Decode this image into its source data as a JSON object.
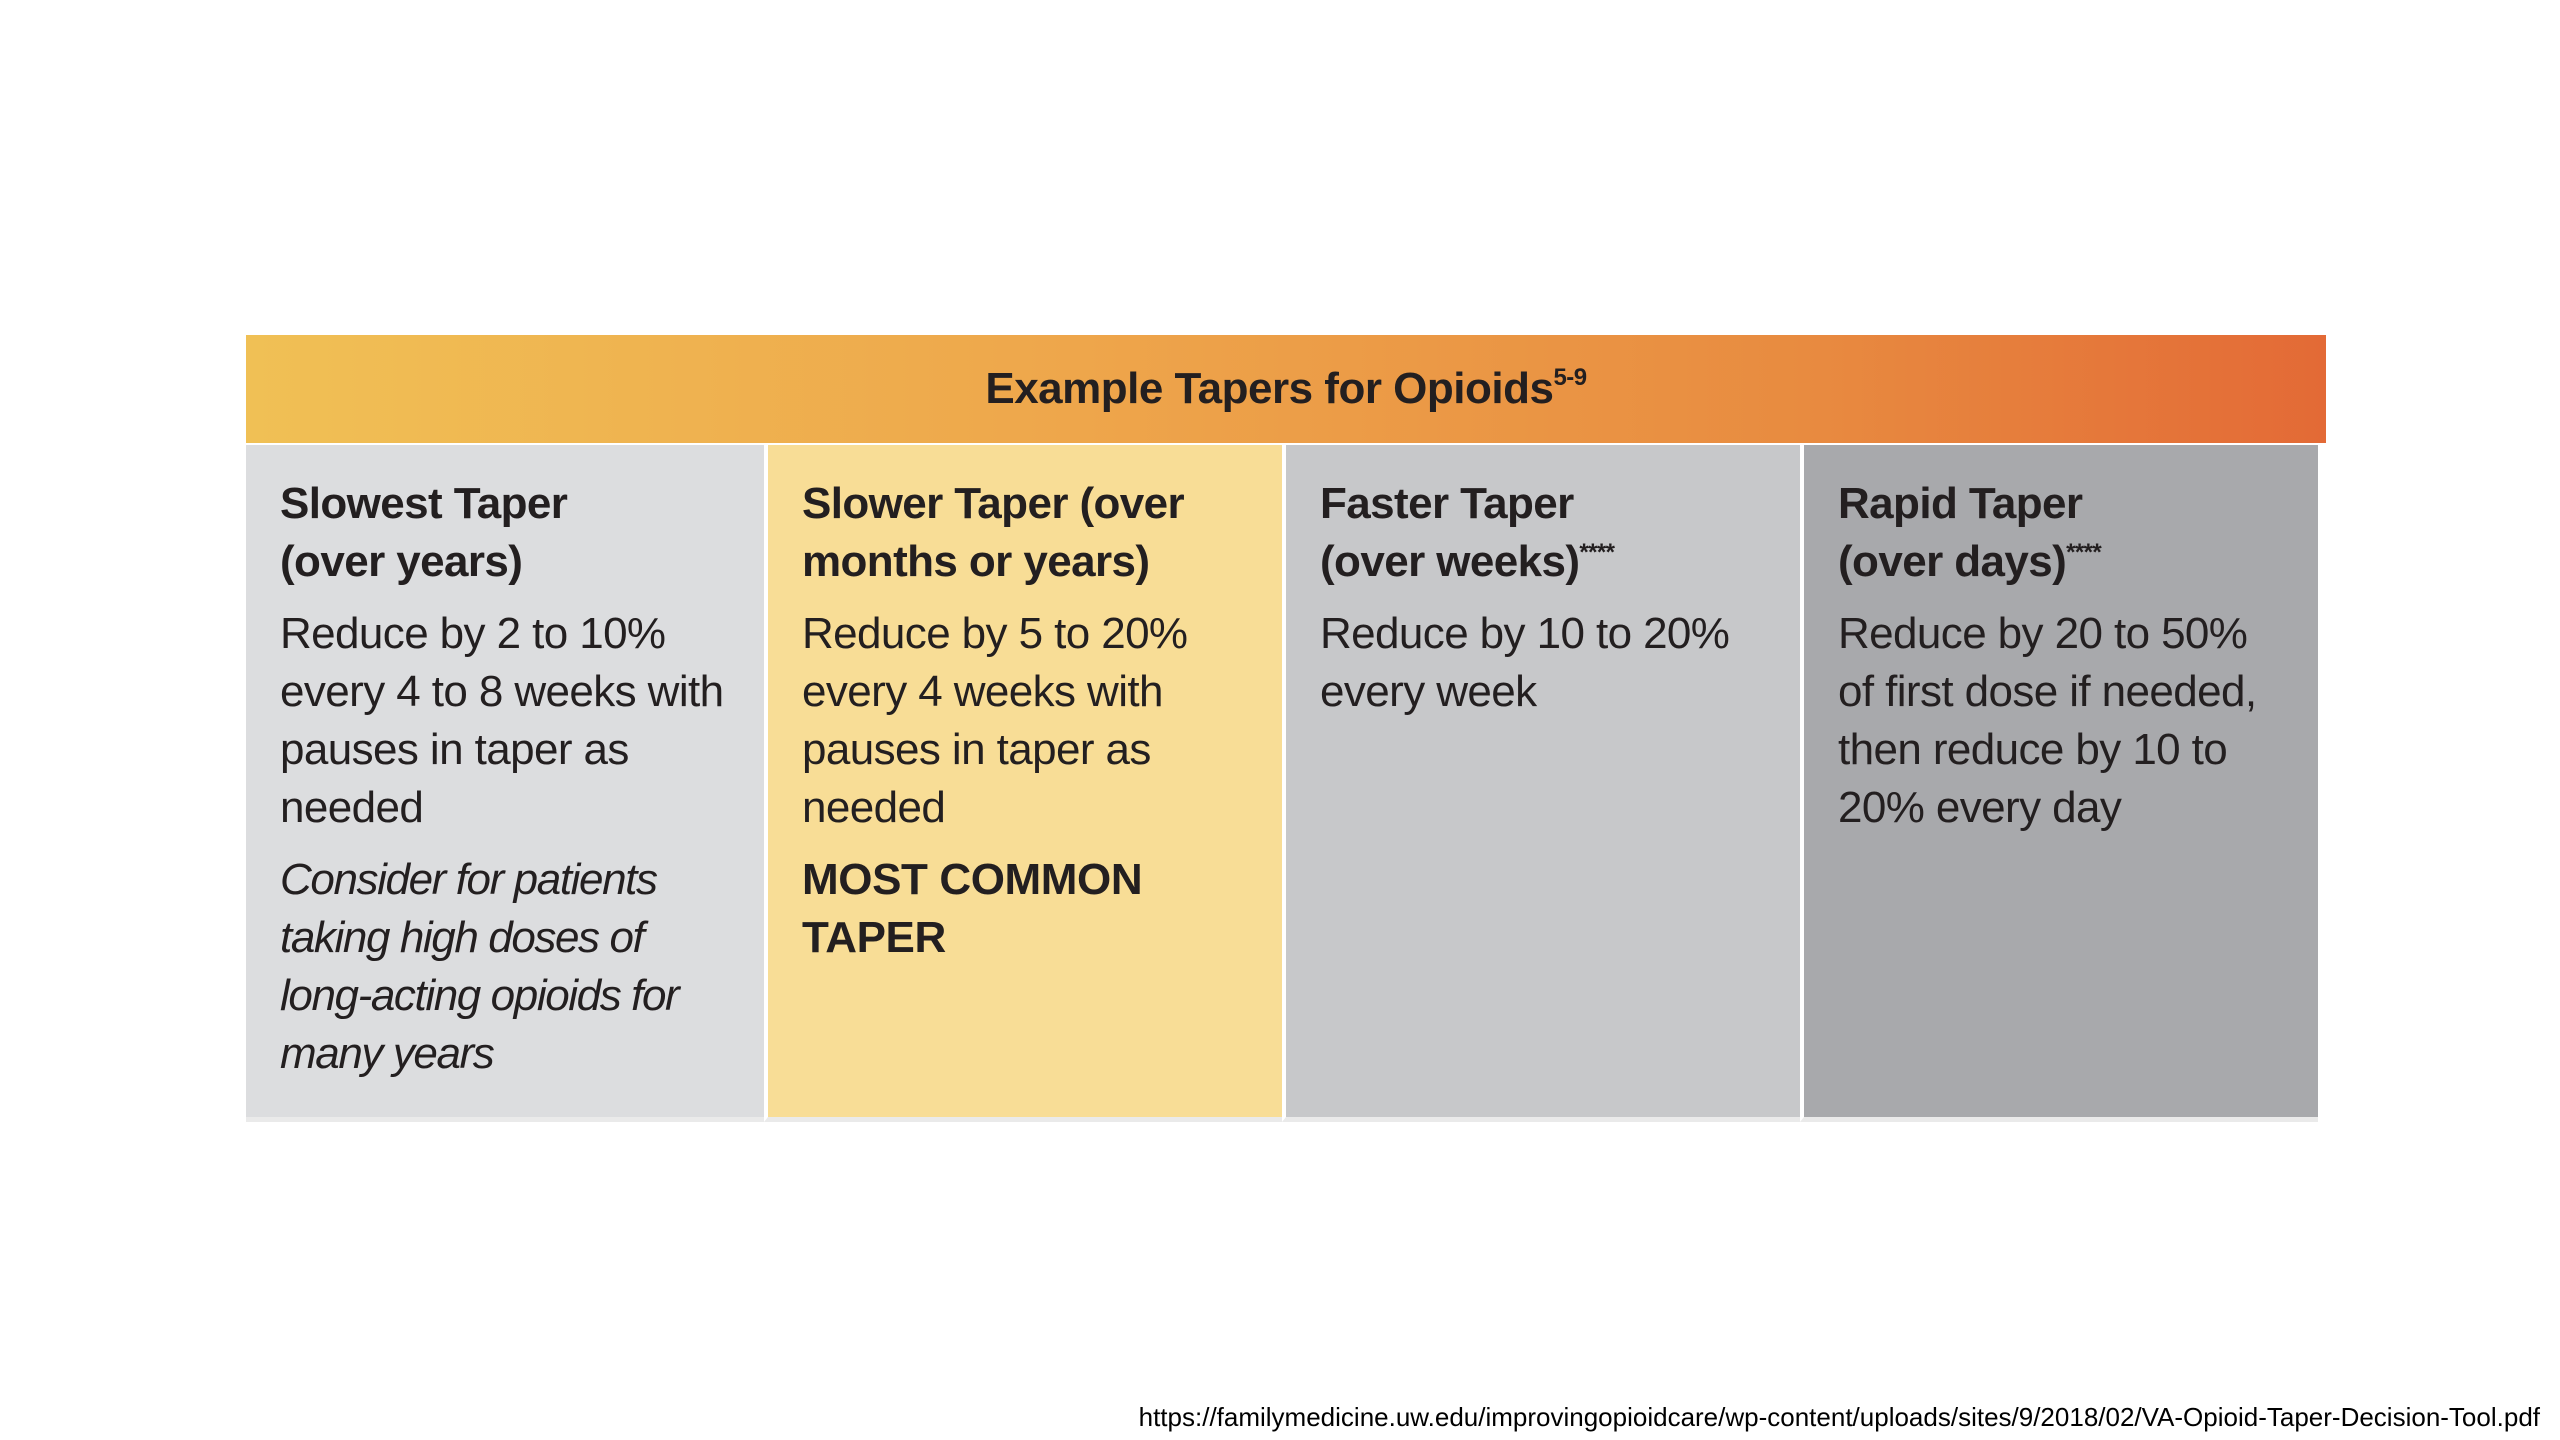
{
  "table": {
    "title": "Example Tapers for Opioids",
    "title_superscript": "5-9",
    "header_gradient": [
      "#f0c055",
      "#e36a36"
    ],
    "columns": [
      {
        "title": "Slowest Taper\n(over years)",
        "title_superscript": "",
        "body": "Reduce by 2 to 10% every 4 to 8 weeks with pauses in taper as needed",
        "note": "Consider for patients taking high doses of long-acting opioids for many years",
        "flag": "",
        "background": "#dcdddf"
      },
      {
        "title": "Slower Taper (over months or years)",
        "title_superscript": "",
        "body": "Reduce by 5 to 20% every 4 weeks with pauses in taper as needed",
        "note": "",
        "flag": "MOST COMMON TAPER",
        "background": "#f8dd96"
      },
      {
        "title": "Faster Taper\n(over weeks)",
        "title_superscript": "****",
        "body": "Reduce by 10 to 20% every week",
        "note": "",
        "flag": "",
        "background": "#c7c8ca"
      },
      {
        "title": "Rapid Taper\n(over days)",
        "title_superscript": "****",
        "body": "Reduce by 20 to 50% of first dose if needed, then reduce by 10 to 20% every day",
        "note": "",
        "flag": "",
        "background": "#a8a9ac"
      }
    ]
  },
  "source_url": "https://familymedicine.uw.edu/improvingopioidcare/wp-content/uploads/sites/9/2018/02/VA-Opioid-Taper-Decision-Tool.pdf"
}
